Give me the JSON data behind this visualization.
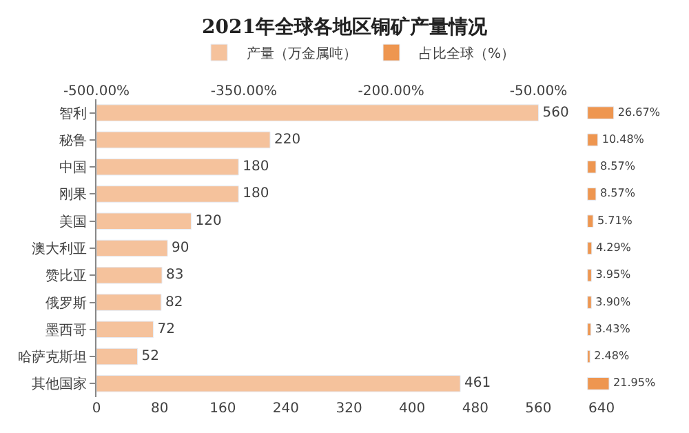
{
  "chart_data": {
    "type": "bar",
    "orientation": "horizontal",
    "title": "2021年全球各地区铜矿产量情况",
    "categories": [
      "智利",
      "秘鲁",
      "中国",
      "刚果",
      "美国",
      "澳大利亚",
      "赞比亚",
      "俄罗斯",
      "墨西哥",
      "哈萨克斯坦",
      "其他国家"
    ],
    "series": [
      {
        "name": "产量（万金属吨）",
        "color": "#f5c29c",
        "values": [
          560,
          220,
          180,
          180,
          120,
          90,
          83,
          82,
          72,
          52,
          461
        ],
        "value_labels": [
          "560",
          "220",
          "180",
          "180",
          "120",
          "90",
          "83",
          "82",
          "72",
          "52",
          "461"
        ]
      },
      {
        "name": "占比全球（%）",
        "color": "#ee9650",
        "axis": "x2",
        "values": [
          26.67,
          10.48,
          8.57,
          8.57,
          5.71,
          4.29,
          3.95,
          3.9,
          3.43,
          2.48,
          21.95
        ],
        "value_labels": [
          "26.67%",
          "10.48%",
          "8.57%",
          "8.57%",
          "5.71%",
          "4.29%",
          "3.95%",
          "3.90%",
          "3.43%",
          "2.48%",
          "21.95%"
        ]
      }
    ],
    "xlim": [
      0,
      660
    ],
    "xticks": [
      0,
      80,
      160,
      240,
      320,
      400,
      480,
      560,
      640
    ],
    "x2lim": [
      -500,
      30.36
    ],
    "x2ticks": [
      {
        "value": -500,
        "label": "-500.00%"
      },
      {
        "value": -350,
        "label": "-350.00%"
      },
      {
        "value": -200,
        "label": "-200.00%"
      },
      {
        "value": -50,
        "label": "-50.00%"
      }
    ],
    "legend": "top"
  }
}
